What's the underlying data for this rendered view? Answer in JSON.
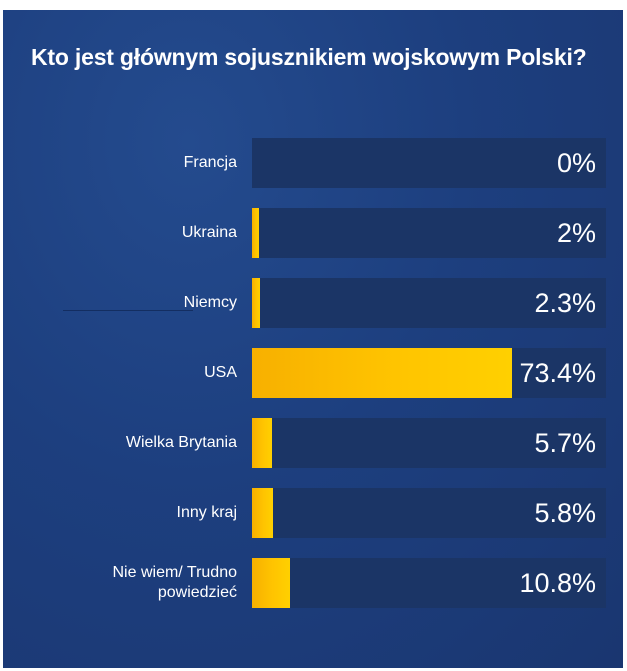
{
  "chart_data": {
    "type": "bar",
    "orientation": "horizontal",
    "title": "Kto jest głównym sojusznikiem wojskowym Polski?",
    "categories": [
      "Francja",
      "Ukraina",
      "Niemcy",
      "USA",
      "Wielka Brytania",
      "Inny kraj",
      "Nie wiem/ Trudno powiedzieć"
    ],
    "values": [
      0,
      2,
      2.3,
      73.4,
      5.7,
      5.8,
      10.8
    ],
    "value_labels": [
      "0%",
      "2%",
      "2.3%",
      "73.4%",
      "5.7%",
      "5.8%",
      "10.8%"
    ],
    "xlim": [
      0,
      100
    ],
    "grid": false,
    "legend": "none",
    "colors": {
      "bar": "#ffc400",
      "track": "#1b3566",
      "background": "#1d3f7f",
      "text": "#ffffff"
    }
  }
}
